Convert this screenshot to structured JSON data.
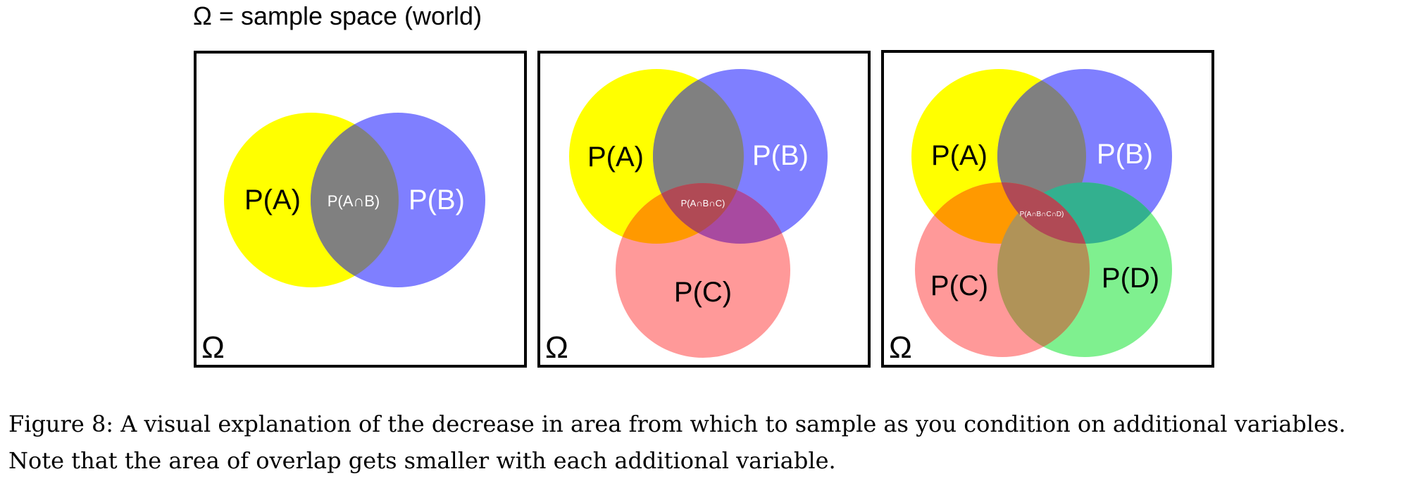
{
  "header": {
    "label": "Ω = sample space (world)"
  },
  "panels": [
    {
      "omega": "Ω",
      "labels": {
        "a": "P(A)",
        "b": "P(B)",
        "ab": "P(A∩B)"
      }
    },
    {
      "omega": "Ω",
      "labels": {
        "a": "P(A)",
        "b": "P(B)",
        "c": "P(C)",
        "abc": "P(A∩B∩C)"
      }
    },
    {
      "omega": "Ω",
      "labels": {
        "a": "P(A)",
        "b": "P(B)",
        "c": "P(C)",
        "d": "P(D)",
        "abcd": "P(A∩B∩C∩D)"
      }
    }
  ],
  "colors": {
    "a": "#ffff00",
    "b": "#7f7fff",
    "c": "#ff9999",
    "d": "#7ff08f",
    "overlap_ab": "#808080",
    "overlap_ac": "#ff9900",
    "overlap_bc": "#a84aa0",
    "overlap_abc": "#b04a55",
    "overlap_bd": "#33b08f",
    "overlap_cd": "#b09358"
  },
  "caption": "Figure 8: A visual explanation of the decrease in area from which to sample as you condition on additional variables. Note that the area of overlap gets smaller with each additional variable."
}
